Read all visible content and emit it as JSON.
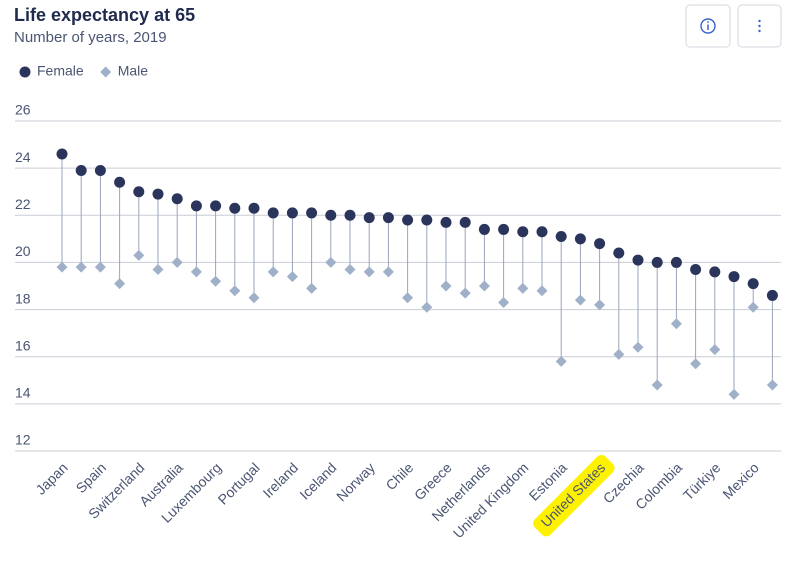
{
  "chart_data": {
    "type": "dot",
    "title": "Life expectancy at 65",
    "subtitle": "Number of years, 2019",
    "categories": [
      "Japan",
      null,
      "Spain",
      null,
      "Switzerland",
      null,
      "Australia",
      null,
      "Luxembourg",
      null,
      "Portugal",
      null,
      "Ireland",
      null,
      "Iceland",
      null,
      "Norway",
      null,
      "Chile",
      null,
      "Greece",
      null,
      "Netherlands",
      null,
      "United Kingdom",
      null,
      "Estonia",
      null,
      "United States",
      null,
      "Czechia",
      null,
      "Colombia",
      null,
      "Türkiye",
      null,
      "Mexico",
      null
    ],
    "series": [
      {
        "name": "Female",
        "color": "#2b355c",
        "values": [
          24.6,
          23.9,
          23.9,
          23.4,
          23.0,
          22.9,
          22.7,
          22.4,
          22.4,
          22.3,
          22.3,
          22.1,
          22.1,
          22.1,
          22.0,
          22.0,
          21.9,
          21.9,
          21.8,
          21.8,
          21.7,
          21.7,
          21.4,
          21.4,
          21.3,
          21.3,
          21.1,
          21.0,
          20.8,
          20.4,
          20.1,
          20.0,
          20.0,
          19.7,
          19.6,
          19.4,
          19.1,
          18.6
        ]
      },
      {
        "name": "Male",
        "color": "#9fb0c8",
        "values": [
          19.8,
          19.8,
          19.8,
          19.1,
          20.3,
          19.7,
          20.0,
          19.6,
          19.2,
          18.8,
          18.5,
          19.6,
          19.4,
          18.9,
          20.0,
          19.7,
          19.6,
          19.6,
          18.5,
          18.1,
          19.0,
          18.7,
          19.0,
          18.3,
          18.9,
          18.8,
          15.8,
          18.4,
          18.2,
          16.1,
          16.4,
          14.8,
          17.4,
          15.7,
          16.3,
          14.4,
          18.1,
          14.8
        ]
      }
    ],
    "ylim": [
      12,
      26
    ],
    "yticks": [
      12,
      14,
      16,
      18,
      20,
      22,
      24,
      26
    ],
    "grid": true,
    "legend": "top-left",
    "highlight": "United States"
  }
}
